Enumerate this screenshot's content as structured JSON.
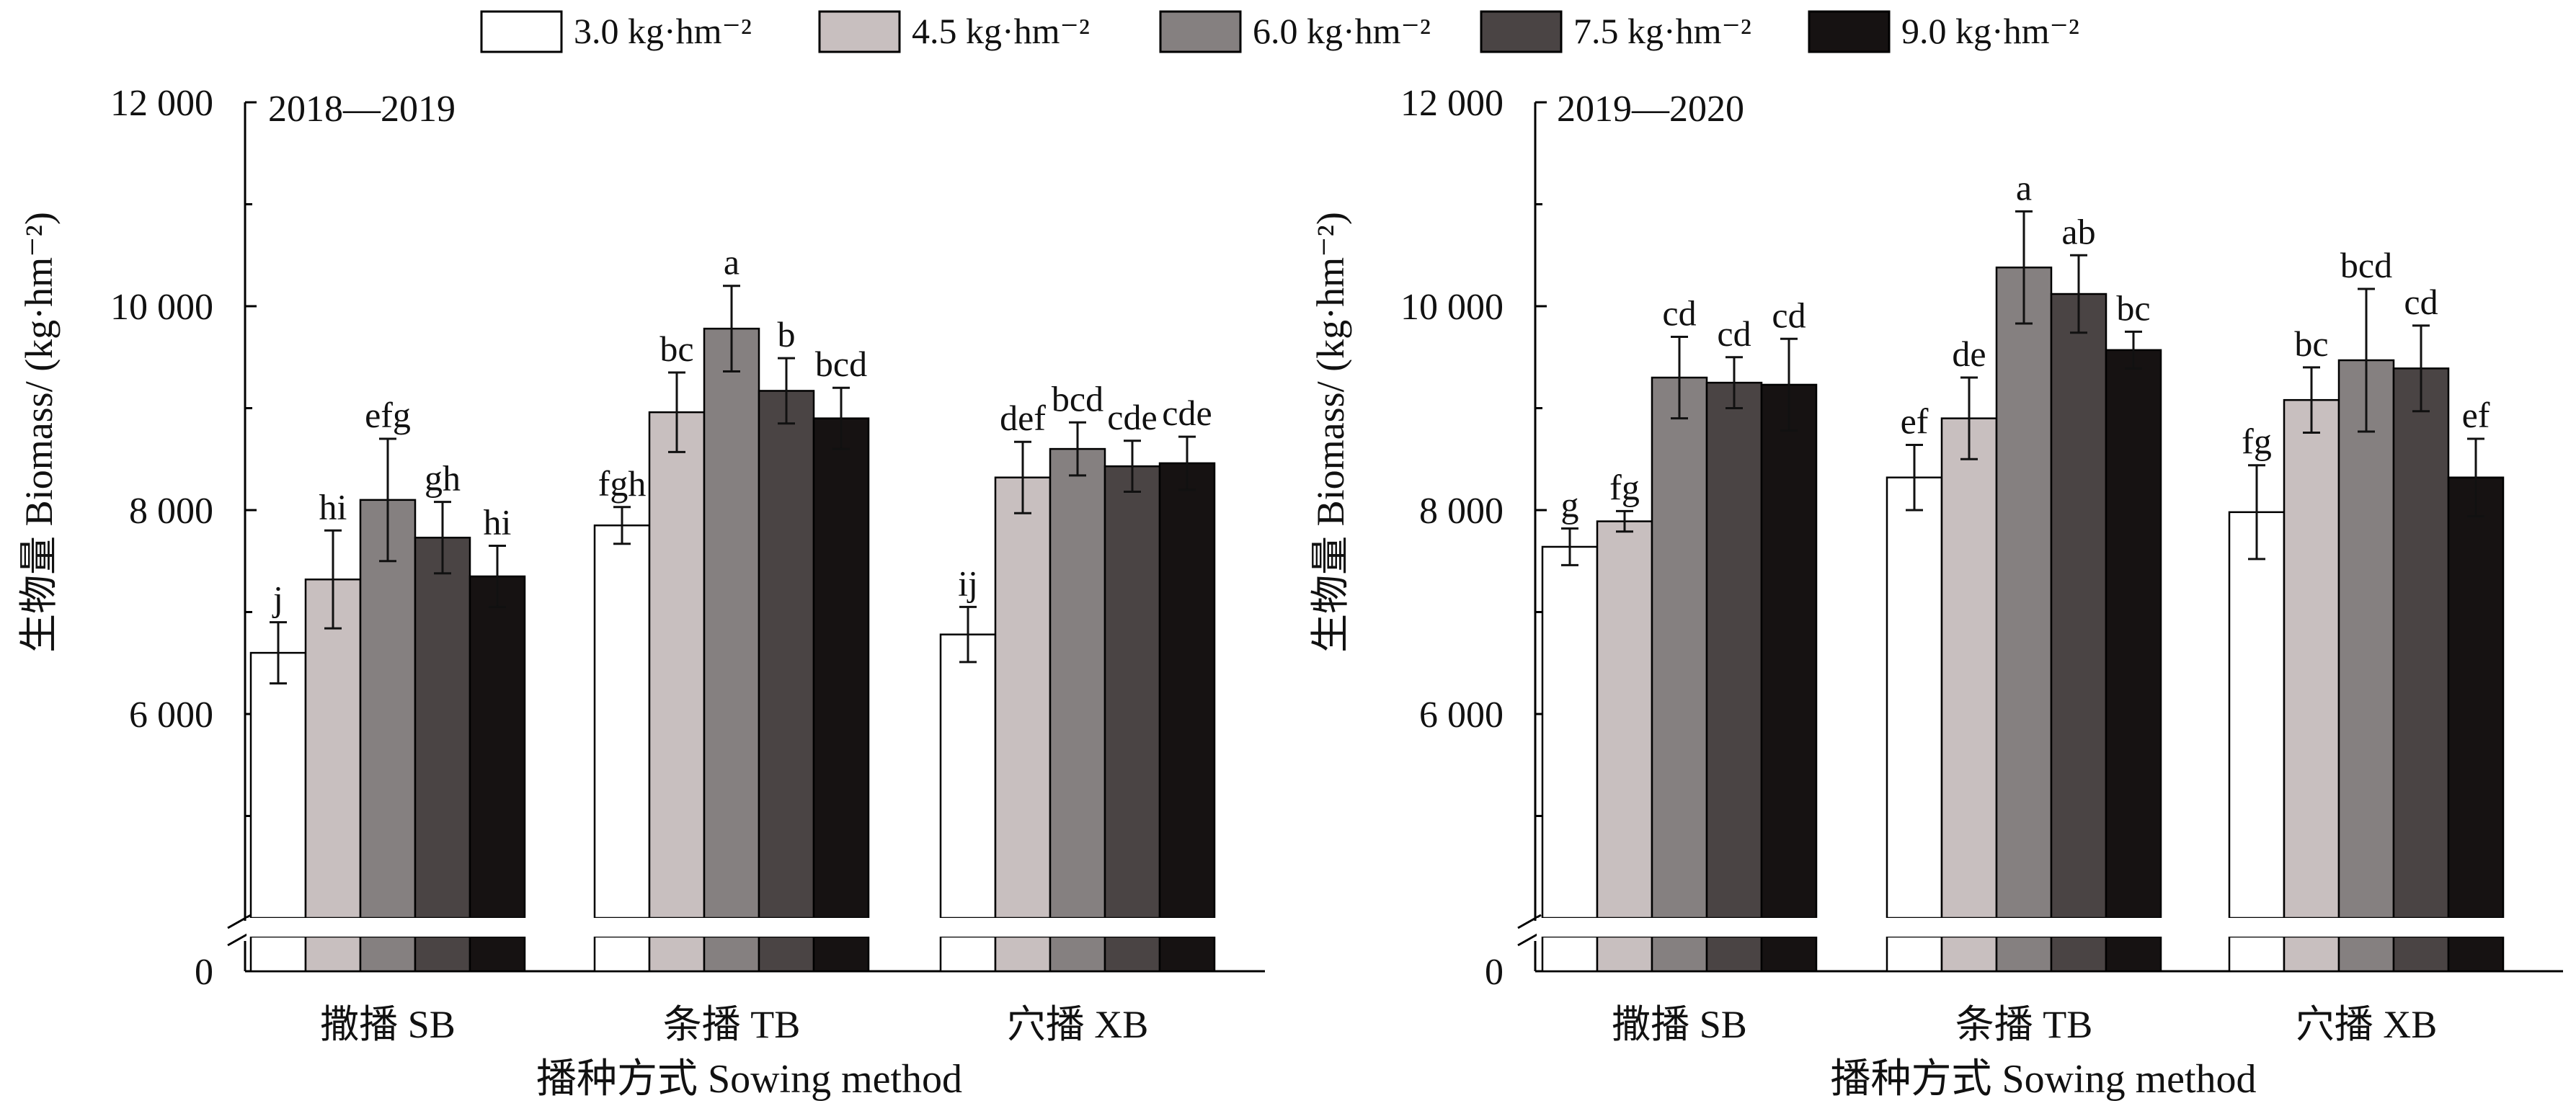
{
  "chart_data": {
    "type": "bar",
    "legend": {
      "placement": "top-center",
      "entries": [
        {
          "label": "3.0 kg·hm⁻²",
          "color": "#ffffff"
        },
        {
          "label": "4.5 kg·hm⁻²",
          "color": "#c8bfbf"
        },
        {
          "label": "6.0 kg·hm⁻²",
          "color": "#858080"
        },
        {
          "label": "7.5 kg·hm⁻²",
          "color": "#4a4444"
        },
        {
          "label": "9.0 kg·hm⁻²",
          "color": "#161212"
        }
      ]
    },
    "bar_edge_color": "#000000",
    "panels": [
      {
        "panel_label": "2018—2019",
        "ylabel": "生物量 Biomass/ (kg·hm⁻²)",
        "xlabel": "播种方式  Sowing method",
        "categories": [
          "撒播 SB",
          "条播 TB",
          "穴播 XB"
        ],
        "yticks": [
          {
            "value": 0,
            "label": "0"
          },
          {
            "value": 6000,
            "label": "6 000"
          },
          {
            "value": 8000,
            "label": "8 000"
          },
          {
            "value": 10000,
            "label": "10 000"
          },
          {
            "value": 12000,
            "label": "12 000"
          }
        ],
        "ylim": [
          4000,
          12000
        ],
        "axis_break": true,
        "series": [
          {
            "values": [
              6600,
              7850,
              6780
            ],
            "errors": [
              300,
              180,
              270
            ],
            "letters": [
              "j",
              "fgh",
              "ij"
            ]
          },
          {
            "values": [
              7320,
              8960,
              8320
            ],
            "errors": [
              480,
              390,
              350
            ],
            "letters": [
              "hi",
              "bc",
              "def"
            ]
          },
          {
            "values": [
              8100,
              9780,
              8600
            ],
            "errors": [
              600,
              420,
              260
            ],
            "letters": [
              "efg",
              "a",
              "bcd"
            ]
          },
          {
            "values": [
              7730,
              9170,
              8430
            ],
            "errors": [
              350,
              320,
              250
            ],
            "letters": [
              "gh",
              "b",
              "cde"
            ]
          },
          {
            "values": [
              7350,
              8900,
              8460
            ],
            "errors": [
              300,
              300,
              260
            ],
            "letters": [
              "hi",
              "bcd",
              "cde"
            ]
          }
        ]
      },
      {
        "panel_label": "2019—2020",
        "ylabel": "生物量 Biomass/ (kg·hm⁻²)",
        "xlabel": "播种方式  Sowing method",
        "categories": [
          "撒播 SB",
          "条播 TB",
          "穴播 XB"
        ],
        "yticks": [
          {
            "value": 0,
            "label": "0"
          },
          {
            "value": 6000,
            "label": "6 000"
          },
          {
            "value": 8000,
            "label": "8 000"
          },
          {
            "value": 10000,
            "label": "10 000"
          },
          {
            "value": 12000,
            "label": "12 000"
          }
        ],
        "ylim": [
          4000,
          12000
        ],
        "axis_break": true,
        "series": [
          {
            "values": [
              7640,
              8320,
              7980
            ],
            "errors": [
              180,
              320,
              460
            ],
            "letters": [
              "g",
              "ef",
              "fg"
            ]
          },
          {
            "values": [
              7890,
              8900,
              9080
            ],
            "errors": [
              100,
              400,
              320
            ],
            "letters": [
              "fg",
              "de",
              "bc"
            ]
          },
          {
            "values": [
              9300,
              10380,
              9470
            ],
            "errors": [
              400,
              550,
              700
            ],
            "letters": [
              "cd",
              "a",
              "bcd"
            ]
          },
          {
            "values": [
              9250,
              10120,
              9390
            ],
            "errors": [
              250,
              380,
              420
            ],
            "letters": [
              "cd",
              "ab",
              "cd"
            ]
          },
          {
            "values": [
              9230,
              9570,
              8320
            ],
            "errors": [
              450,
              180,
              380
            ],
            "letters": [
              "cd",
              "bc",
              "ef"
            ]
          }
        ]
      }
    ]
  }
}
